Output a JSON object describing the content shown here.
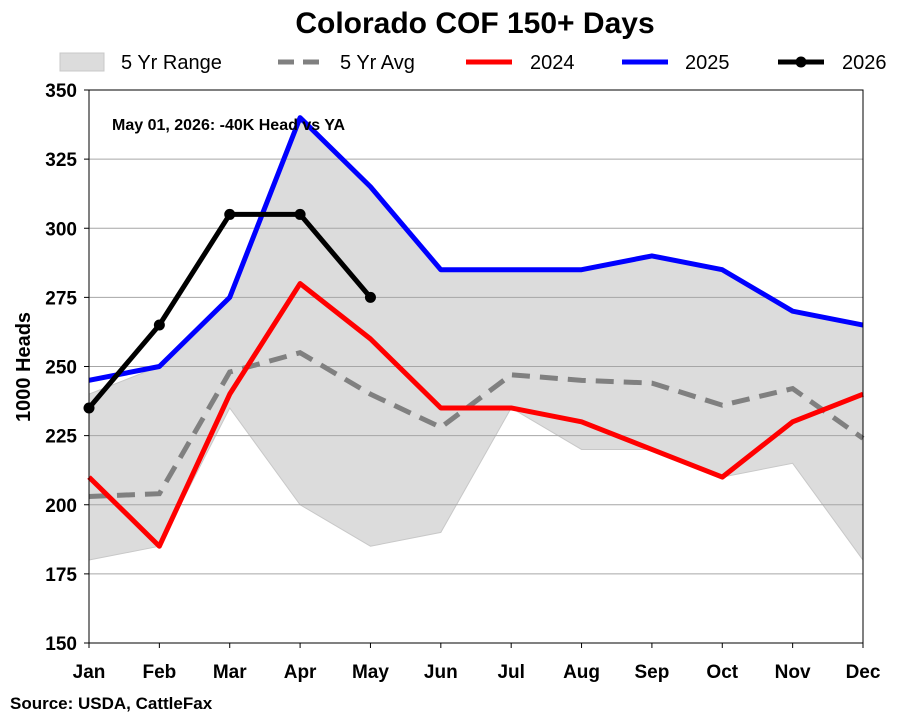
{
  "chart_data": {
    "type": "line",
    "title": "Colorado COF 150+ Days",
    "ylabel": "1000 Heads",
    "categories": [
      "Jan",
      "Feb",
      "Mar",
      "Apr",
      "May",
      "Jun",
      "Jul",
      "Aug",
      "Sep",
      "Oct",
      "Nov",
      "Dec"
    ],
    "ylim": [
      150,
      350
    ],
    "yticks": [
      150,
      175,
      200,
      225,
      250,
      275,
      300,
      325,
      350
    ],
    "grid": true,
    "legend_position": "top",
    "annotation": "May 01, 2026: -40K Head vs YA",
    "source": "Source: USDA, CattleFax",
    "range": {
      "name": "5 Yr Range",
      "color": "#dcdcdc",
      "min": [
        180,
        185,
        235,
        200,
        185,
        190,
        235,
        220,
        220,
        210,
        215,
        180
      ],
      "max": [
        240,
        250,
        275,
        340,
        315,
        285,
        285,
        285,
        290,
        285,
        270,
        265
      ]
    },
    "series": [
      {
        "name": "5 Yr Avg",
        "color": "#808080",
        "dashed": true,
        "markers": false,
        "values": [
          203,
          204,
          248,
          255,
          240,
          228,
          247,
          245,
          244,
          236,
          242,
          224
        ]
      },
      {
        "name": "2024",
        "color": "#ff0000",
        "dashed": false,
        "markers": false,
        "values": [
          210,
          185,
          240,
          280,
          260,
          235,
          235,
          230,
          220,
          210,
          230,
          240
        ]
      },
      {
        "name": "2025",
        "color": "#0000ff",
        "dashed": false,
        "markers": false,
        "values": [
          245,
          250,
          275,
          340,
          315,
          285,
          285,
          285,
          290,
          285,
          270,
          265
        ]
      },
      {
        "name": "2026",
        "color": "#000000",
        "dashed": false,
        "markers": true,
        "values": [
          235,
          265,
          305,
          305,
          275,
          null,
          null,
          null,
          null,
          null,
          null,
          null
        ]
      }
    ]
  }
}
